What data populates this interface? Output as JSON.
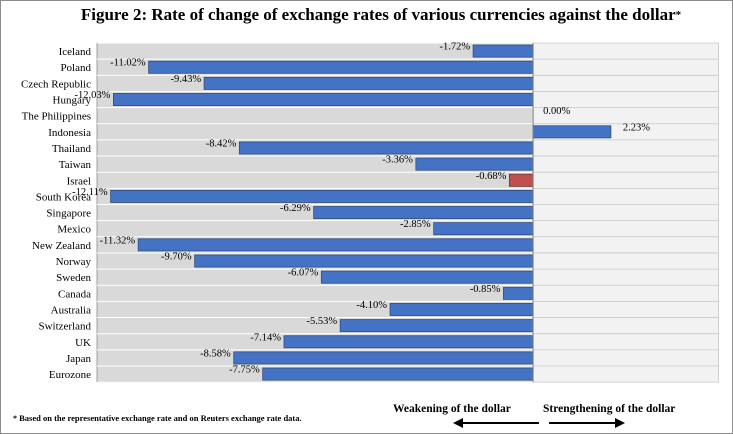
{
  "title": "Figure 2:  Rate of change of exchange rates of various currencies against the dollar",
  "title_mark": "*",
  "footnote": "Based on the representative  exchange  rate  and on Reuters  exchange  rate data.",
  "footnote_mark": "*",
  "weakening_label": "Weakening of the dollar",
  "strengthening_label": "Strengthening of the dollar",
  "colors": {
    "bar": "#4472c4",
    "bar_highlight": "#c0504d",
    "plot_bg": "#d9d9d9",
    "bar_edge": "#2f4d7a"
  },
  "chart_data": {
    "type": "bar",
    "orientation": "horizontal",
    "categories": [
      "Iceland",
      "Poland",
      "Czech Republic",
      "Hungary",
      "The Philippines",
      "Indonesia",
      "Thailand",
      "Taiwan",
      "Israel",
      "South Korea",
      "Singapore",
      "Mexico",
      "New Zealand",
      "Norway",
      "Sweden",
      "Canada",
      "Australia",
      "Switzerland",
      "UK",
      "Japan",
      "Eurozone"
    ],
    "values": [
      -1.72,
      -11.02,
      -9.43,
      -12.03,
      0.0,
      2.23,
      -8.42,
      -3.36,
      -0.68,
      -12.11,
      -6.29,
      -2.85,
      -11.32,
      -9.7,
      -6.07,
      -0.85,
      -4.1,
      -5.53,
      -7.14,
      -8.58,
      -7.75
    ],
    "value_labels": [
      "-1.72%",
      "-11.02%",
      "-9.43%",
      "-12.03%",
      "0.00%",
      "2.23%",
      "-8.42%",
      "-3.36%",
      "-0.68%",
      "-12.11%",
      "-6.29%",
      "-2.85%",
      "-11.32%",
      "-9.70%",
      "-6.07%",
      "-0.85%",
      "-4.10%",
      "-5.53%",
      "-7.14%",
      "-8.58%",
      "-7.75%"
    ],
    "highlight": "Israel",
    "xlim": [
      -12.5,
      5.3
    ],
    "grid": true,
    "legend": "none"
  }
}
